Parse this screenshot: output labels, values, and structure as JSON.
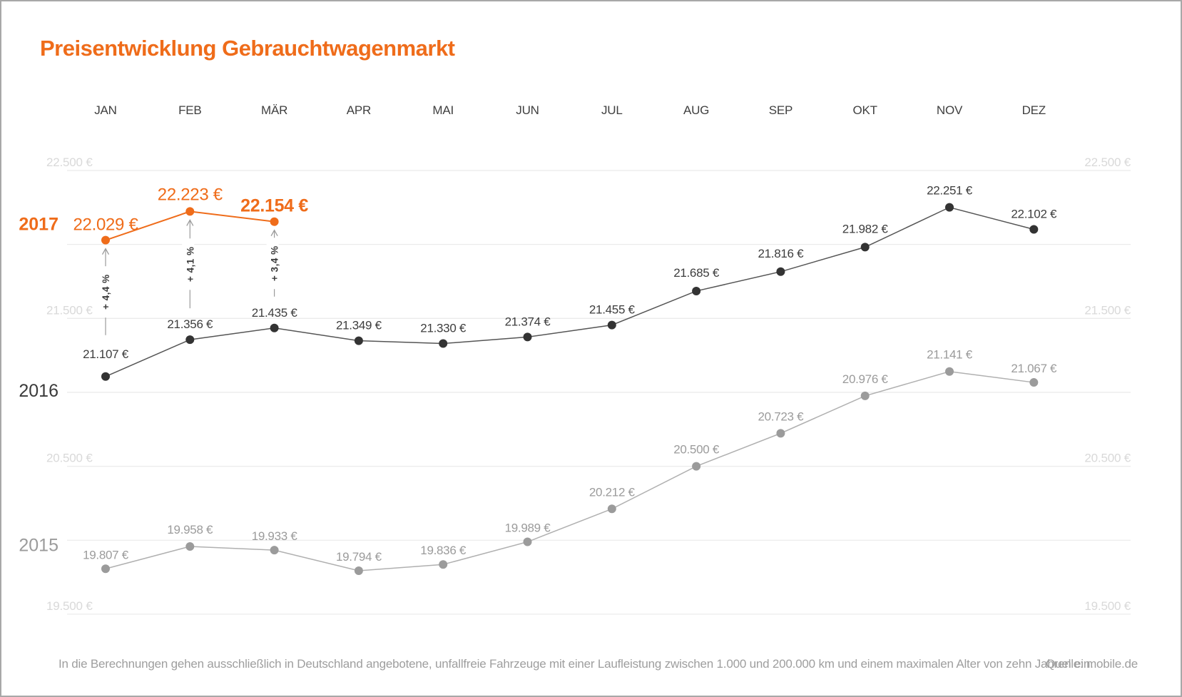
{
  "title": "Preisentwicklung Gebrauchtwagenmarkt",
  "footer": {
    "note": "In die Berechnungen gehen ausschließlich in Deutschland angebotene, unfallfreie Fahrzeuge mit einer Laufleistung zwischen 1.000 und 200.000 km und einem maximalen Alter von zehn Jahren ein.",
    "source": "Quelle: mobile.de"
  },
  "colors": {
    "accent_orange": "#EF6C1A",
    "series_2016": "#333333",
    "series_2016_line": "#555555",
    "series_2015": "#9b9b9b",
    "series_2015_line": "#b0b0b0",
    "grid": "#ebebeb",
    "axis_tick_label": "#d9d9d9",
    "month_label": "#3f3f3f",
    "annotation": "#3b3b3b",
    "arrow": "#9b9b9b"
  },
  "chart_data": {
    "type": "line",
    "categories": [
      "JAN",
      "FEB",
      "MÄR",
      "APR",
      "MAI",
      "JUN",
      "JUL",
      "AUG",
      "SEP",
      "OKT",
      "NOV",
      "DEZ"
    ],
    "ylabel_ticks": [
      "22.500 €",
      "21.500 €",
      "20.500 €",
      "19.500 €"
    ],
    "ylim": [
      19500,
      22500
    ],
    "grid_step": 500,
    "grid_labeled_values": [
      22500,
      21500,
      20500,
      19500
    ],
    "legend_position": "left-inline-year-labels",
    "series": [
      {
        "name": "2015",
        "values": [
          19807,
          19958,
          19933,
          19794,
          19836,
          19989,
          20212,
          20500,
          20723,
          20976,
          21141,
          21067
        ],
        "labels": [
          "19.807 €",
          "19.958 €",
          "19.933 €",
          "19.794 €",
          "19.836 €",
          "19.989 €",
          "20.212 €",
          "20.500 €",
          "20.723 €",
          "20.976 €",
          "21.141 €",
          "21.067 €"
        ]
      },
      {
        "name": "2016",
        "values": [
          21107,
          21356,
          21435,
          21349,
          21330,
          21374,
          21455,
          21685,
          21816,
          21982,
          22251,
          22102
        ],
        "labels": [
          "21.107 €",
          "21.356 €",
          "21.435 €",
          "21.349 €",
          "21.330 €",
          "21.374 €",
          "21.455 €",
          "21.685 €",
          "21.816 €",
          "21.982 €",
          "22.251 €",
          "22.102 €"
        ]
      },
      {
        "name": "2017",
        "values": [
          22029,
          22223,
          22154
        ],
        "labels": [
          "22.029 €",
          "22.223 €",
          "22.154 €"
        ]
      }
    ],
    "annotations": [
      {
        "month": "JAN",
        "label": "+ 4,4 %"
      },
      {
        "month": "FEB",
        "label": "+ 4,1 %"
      },
      {
        "month": "MÄR",
        "label": "+ 3,4 %"
      }
    ]
  }
}
